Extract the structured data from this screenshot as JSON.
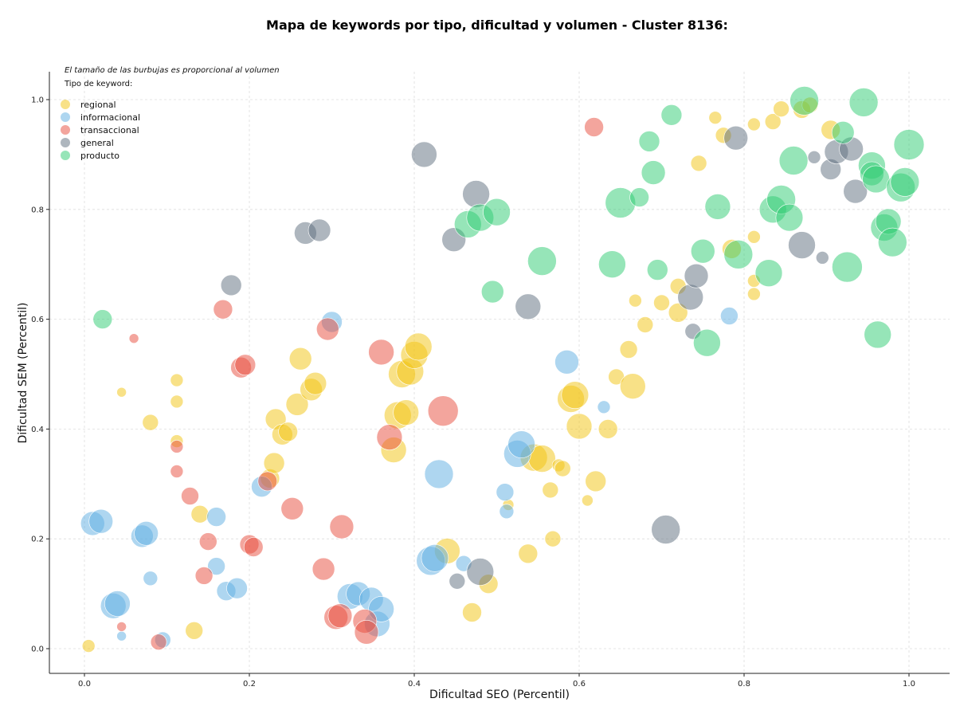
{
  "chart_data": {
    "type": "scatter",
    "title": "Mapa de keywords por tipo, dificultad y volumen - Cluster 8136:",
    "xlabel": "Dificultad SEO (Percentil)",
    "ylabel": "Dificultad SEM (Percentil)",
    "xlim": [
      -0.045,
      1.05
    ],
    "ylim": [
      -0.045,
      1.05
    ],
    "xticks": [
      "0.0",
      "0.2",
      "0.4",
      "0.6",
      "0.8",
      "1.0"
    ],
    "yticks": [
      "0.0",
      "0.2",
      "0.4",
      "0.6",
      "0.8",
      "1.0"
    ],
    "grid": true,
    "legend_position": "top-left",
    "size_note": "El tamaño de las burbujas es proporcional al volumen",
    "legend_title": "Tipo de keyword:",
    "series": [
      {
        "name": "regional",
        "color": "#f1c40f",
        "points": [
          [
            0.005,
            0.005,
            8
          ],
          [
            0.045,
            0.467,
            6
          ],
          [
            0.08,
            0.412,
            10
          ],
          [
            0.112,
            0.489,
            8
          ],
          [
            0.112,
            0.45,
            8
          ],
          [
            0.112,
            0.378,
            8
          ],
          [
            0.133,
            0.033,
            11
          ],
          [
            0.14,
            0.245,
            11
          ],
          [
            0.225,
            0.31,
            12
          ],
          [
            0.232,
            0.418,
            13
          ],
          [
            0.23,
            0.338,
            13
          ],
          [
            0.24,
            0.39,
            13
          ],
          [
            0.247,
            0.395,
            12
          ],
          [
            0.258,
            0.445,
            14
          ],
          [
            0.262,
            0.528,
            14
          ],
          [
            0.275,
            0.472,
            14
          ],
          [
            0.28,
            0.483,
            14
          ],
          [
            0.375,
            0.362,
            16
          ],
          [
            0.38,
            0.425,
            17
          ],
          [
            0.39,
            0.43,
            16
          ],
          [
            0.385,
            0.5,
            17
          ],
          [
            0.395,
            0.505,
            17
          ],
          [
            0.4,
            0.535,
            17
          ],
          [
            0.405,
            0.55,
            17
          ],
          [
            0.44,
            0.178,
            16
          ],
          [
            0.47,
            0.066,
            12
          ],
          [
            0.49,
            0.118,
            12
          ],
          [
            0.514,
            0.262,
            7
          ],
          [
            0.538,
            0.173,
            12
          ],
          [
            0.545,
            0.348,
            17
          ],
          [
            0.555,
            0.346,
            17
          ],
          [
            0.565,
            0.289,
            10
          ],
          [
            0.568,
            0.2,
            10
          ],
          [
            0.575,
            0.334,
            8
          ],
          [
            0.58,
            0.328,
            10
          ],
          [
            0.59,
            0.455,
            17
          ],
          [
            0.595,
            0.462,
            17
          ],
          [
            0.6,
            0.405,
            16
          ],
          [
            0.61,
            0.27,
            7
          ],
          [
            0.62,
            0.305,
            13
          ],
          [
            0.635,
            0.4,
            12
          ],
          [
            0.645,
            0.495,
            10
          ],
          [
            0.66,
            0.545,
            11
          ],
          [
            0.665,
            0.478,
            16
          ],
          [
            0.668,
            0.634,
            8
          ],
          [
            0.68,
            0.59,
            10
          ],
          [
            0.7,
            0.63,
            10
          ],
          [
            0.72,
            0.612,
            12
          ],
          [
            0.72,
            0.66,
            10
          ],
          [
            0.745,
            0.884,
            10
          ],
          [
            0.765,
            0.967,
            8
          ],
          [
            0.775,
            0.935,
            10
          ],
          [
            0.785,
            0.728,
            12
          ],
          [
            0.812,
            0.75,
            8
          ],
          [
            0.812,
            0.67,
            8
          ],
          [
            0.812,
            0.646,
            8
          ],
          [
            0.812,
            0.955,
            8
          ],
          [
            0.835,
            0.96,
            10
          ],
          [
            0.845,
            0.983,
            10
          ],
          [
            0.87,
            0.982,
            11
          ],
          [
            0.88,
            0.99,
            10
          ],
          [
            0.905,
            0.945,
            12
          ]
        ]
      },
      {
        "name": "informacional",
        "color": "#5dade2",
        "points": [
          [
            0.01,
            0.228,
            15
          ],
          [
            0.02,
            0.232,
            15
          ],
          [
            0.035,
            0.078,
            16
          ],
          [
            0.04,
            0.082,
            16
          ],
          [
            0.045,
            0.023,
            6
          ],
          [
            0.07,
            0.205,
            14
          ],
          [
            0.075,
            0.21,
            15
          ],
          [
            0.08,
            0.128,
            9
          ],
          [
            0.095,
            0.016,
            10
          ],
          [
            0.16,
            0.24,
            12
          ],
          [
            0.16,
            0.15,
            11
          ],
          [
            0.172,
            0.105,
            12
          ],
          [
            0.185,
            0.11,
            13
          ],
          [
            0.215,
            0.295,
            13
          ],
          [
            0.3,
            0.595,
            13
          ],
          [
            0.322,
            0.095,
            16
          ],
          [
            0.332,
            0.1,
            15
          ],
          [
            0.348,
            0.09,
            15
          ],
          [
            0.355,
            0.045,
            16
          ],
          [
            0.36,
            0.072,
            16
          ],
          [
            0.42,
            0.16,
            18
          ],
          [
            0.425,
            0.165,
            17
          ],
          [
            0.43,
            0.318,
            18
          ],
          [
            0.46,
            0.155,
            10
          ],
          [
            0.51,
            0.285,
            11
          ],
          [
            0.512,
            0.25,
            9
          ],
          [
            0.525,
            0.355,
            17
          ],
          [
            0.53,
            0.372,
            17
          ],
          [
            0.585,
            0.522,
            15
          ],
          [
            0.63,
            0.44,
            8
          ],
          [
            0.782,
            0.606,
            11
          ]
        ]
      },
      {
        "name": "transaccional",
        "color": "#e74c3c",
        "points": [
          [
            0.045,
            0.04,
            6
          ],
          [
            0.06,
            0.565,
            6
          ],
          [
            0.09,
            0.012,
            10
          ],
          [
            0.112,
            0.368,
            8
          ],
          [
            0.112,
            0.323,
            8
          ],
          [
            0.128,
            0.278,
            11
          ],
          [
            0.145,
            0.133,
            11
          ],
          [
            0.15,
            0.195,
            11
          ],
          [
            0.168,
            0.618,
            12
          ],
          [
            0.19,
            0.512,
            13
          ],
          [
            0.195,
            0.517,
            13
          ],
          [
            0.2,
            0.19,
            12
          ],
          [
            0.205,
            0.185,
            12
          ],
          [
            0.222,
            0.305,
            12
          ],
          [
            0.252,
            0.255,
            14
          ],
          [
            0.29,
            0.145,
            14
          ],
          [
            0.295,
            0.582,
            14
          ],
          [
            0.305,
            0.057,
            15
          ],
          [
            0.31,
            0.06,
            15
          ],
          [
            0.312,
            0.222,
            15
          ],
          [
            0.34,
            0.05,
            15
          ],
          [
            0.342,
            0.03,
            15
          ],
          [
            0.36,
            0.54,
            16
          ],
          [
            0.37,
            0.385,
            16
          ],
          [
            0.435,
            0.433,
            19
          ],
          [
            0.618,
            0.95,
            12
          ]
        ]
      },
      {
        "name": "general",
        "color": "#5d6d7e",
        "points": [
          [
            0.178,
            0.662,
            13
          ],
          [
            0.268,
            0.757,
            14
          ],
          [
            0.285,
            0.762,
            14
          ],
          [
            0.412,
            0.9,
            16
          ],
          [
            0.448,
            0.745,
            15
          ],
          [
            0.452,
            0.123,
            10
          ],
          [
            0.475,
            0.828,
            17
          ],
          [
            0.48,
            0.14,
            17
          ],
          [
            0.538,
            0.623,
            16
          ],
          [
            0.705,
            0.217,
            18
          ],
          [
            0.735,
            0.64,
            16
          ],
          [
            0.738,
            0.578,
            10
          ],
          [
            0.742,
            0.679,
            15
          ],
          [
            0.79,
            0.93,
            15
          ],
          [
            0.87,
            0.735,
            17
          ],
          [
            0.885,
            0.895,
            8
          ],
          [
            0.895,
            0.712,
            8
          ],
          [
            0.905,
            0.873,
            13
          ],
          [
            0.912,
            0.905,
            15
          ],
          [
            0.93,
            0.91,
            15
          ],
          [
            0.935,
            0.833,
            15
          ]
        ]
      },
      {
        "name": "producto",
        "color": "#2ecc71",
        "points": [
          [
            0.022,
            0.6,
            12
          ],
          [
            0.465,
            0.773,
            17
          ],
          [
            0.48,
            0.785,
            17
          ],
          [
            0.495,
            0.65,
            14
          ],
          [
            0.5,
            0.795,
            17
          ],
          [
            0.555,
            0.706,
            18
          ],
          [
            0.64,
            0.7,
            17
          ],
          [
            0.65,
            0.812,
            19
          ],
          [
            0.673,
            0.822,
            12
          ],
          [
            0.685,
            0.924,
            13
          ],
          [
            0.69,
            0.867,
            15
          ],
          [
            0.695,
            0.69,
            13
          ],
          [
            0.712,
            0.972,
            13
          ],
          [
            0.75,
            0.724,
            15
          ],
          [
            0.755,
            0.557,
            17
          ],
          [
            0.768,
            0.805,
            16
          ],
          [
            0.793,
            0.718,
            18
          ],
          [
            0.83,
            0.684,
            17
          ],
          [
            0.835,
            0.8,
            17
          ],
          [
            0.845,
            0.818,
            18
          ],
          [
            0.855,
            0.785,
            17
          ],
          [
            0.86,
            0.889,
            18
          ],
          [
            0.873,
            0.998,
            18
          ],
          [
            0.92,
            0.94,
            14
          ],
          [
            0.925,
            0.695,
            19
          ],
          [
            0.945,
            0.995,
            18
          ],
          [
            0.955,
            0.88,
            17
          ],
          [
            0.955,
            0.865,
            15
          ],
          [
            0.96,
            0.855,
            17
          ],
          [
            0.962,
            0.572,
            17
          ],
          [
            0.97,
            0.767,
            17
          ],
          [
            0.975,
            0.778,
            16
          ],
          [
            0.98,
            0.74,
            18
          ],
          [
            0.99,
            0.84,
            18
          ],
          [
            0.995,
            0.85,
            18
          ],
          [
            1.0,
            0.918,
            19
          ]
        ]
      }
    ]
  }
}
